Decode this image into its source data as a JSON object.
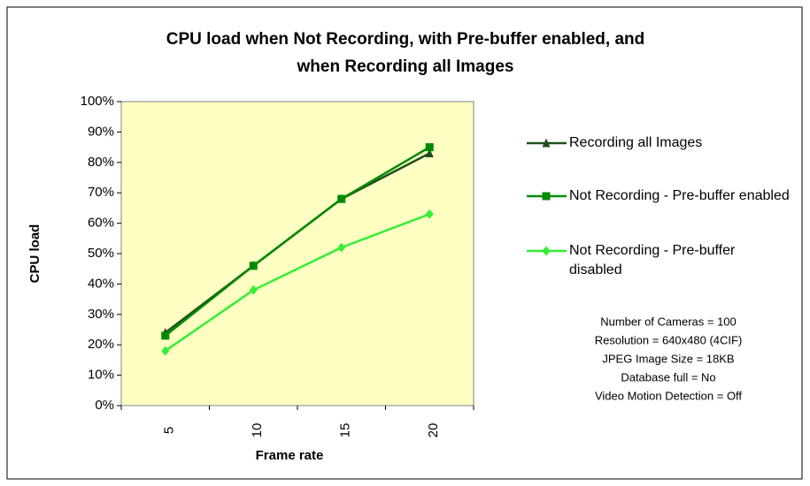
{
  "chart_data": {
    "type": "line",
    "title": "CPU load when Not Recording, with Pre-buffer enabled, and",
    "title_line2": "when Recording all Images",
    "x_label": "Frame rate",
    "y_label": "CPU load",
    "categories": [
      "5",
      "10",
      "15",
      "20"
    ],
    "series": [
      {
        "name": "Recording all Images",
        "color": "#1f4f1f",
        "marker": "triangle",
        "values": [
          24,
          46,
          68,
          83
        ]
      },
      {
        "name": "Not Recording - Pre-buffer enabled",
        "color": "#008a00",
        "marker": "square",
        "values": [
          23,
          46,
          68,
          85
        ]
      },
      {
        "name": "Not Recording - Pre-buffer disabled",
        "color": "#33ee33",
        "marker": "diamond",
        "values": [
          18,
          38,
          52,
          63
        ]
      }
    ],
    "ylim": [
      0,
      100
    ],
    "yticks": [
      {
        "value": 0,
        "label": "0%"
      },
      {
        "value": 10,
        "label": "10%"
      },
      {
        "value": 20,
        "label": "20%"
      },
      {
        "value": 30,
        "label": "30%"
      },
      {
        "value": 40,
        "label": "40%"
      },
      {
        "value": 50,
        "label": "50%"
      },
      {
        "value": 60,
        "label": "60%"
      },
      {
        "value": 70,
        "label": "70%"
      },
      {
        "value": 80,
        "label": "80%"
      },
      {
        "value": 90,
        "label": "90%"
      },
      {
        "value": 100,
        "label": "100%"
      }
    ],
    "annotations": [
      "Number of Cameras = 100",
      "Resolution = 640x480 (4CIF)",
      "JPEG Image Size = 18KB",
      "Database full = No",
      "Video Motion Detection = Off"
    ],
    "grid": false
  }
}
